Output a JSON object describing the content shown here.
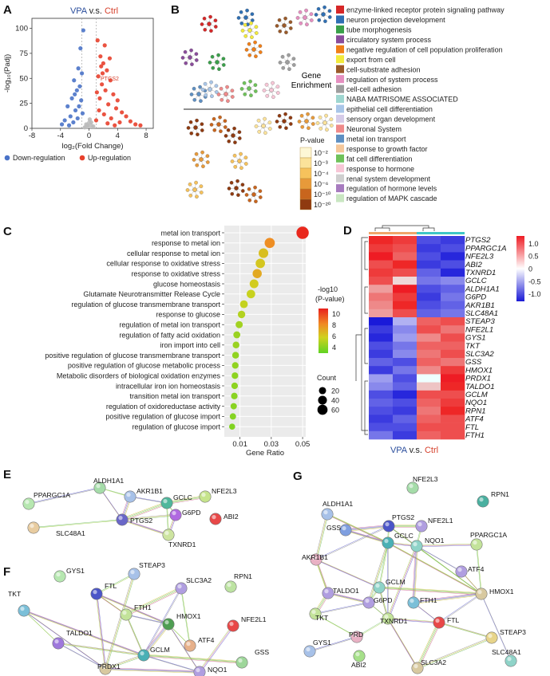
{
  "panels": [
    "A",
    "B",
    "C",
    "D",
    "E",
    "F",
    "G"
  ],
  "chart_data": [
    {
      "panel": "A",
      "type": "scatter",
      "title_parts": [
        "VPA",
        " v.s. ",
        "Ctrl"
      ],
      "xlabel": "log₂(Fold Change)",
      "ylabel": "-log₁₀(Padj)",
      "xlim": [
        -8,
        9
      ],
      "ylim": [
        0,
        110
      ],
      "xticks": [
        -8,
        -4,
        0,
        4,
        8
      ],
      "yticks": [
        0,
        25,
        50,
        75,
        100
      ],
      "annotations": [
        "PTGS2"
      ],
      "legend": [
        "Down-regulation",
        "Up-regulation"
      ],
      "colors": {
        "down": "#4a73c8",
        "up": "#e8402c",
        "ns": "#bbbbbb"
      },
      "points": [
        {
          "x": -0.8,
          "y": 98,
          "g": "down"
        },
        {
          "x": -1.2,
          "y": 80,
          "g": "down"
        },
        {
          "x": -1.5,
          "y": 60,
          "g": "down"
        },
        {
          "x": -2.1,
          "y": 48,
          "g": "down"
        },
        {
          "x": -1.0,
          "y": 55,
          "g": "down"
        },
        {
          "x": -1.7,
          "y": 38,
          "g": "down"
        },
        {
          "x": -2.4,
          "y": 30,
          "g": "down"
        },
        {
          "x": -3.0,
          "y": 22,
          "g": "down"
        },
        {
          "x": -1.3,
          "y": 42,
          "g": "down"
        },
        {
          "x": -1.9,
          "y": 18,
          "g": "down"
        },
        {
          "x": -2.6,
          "y": 12,
          "g": "down"
        },
        {
          "x": -3.4,
          "y": 8,
          "g": "down"
        },
        {
          "x": -1.1,
          "y": 28,
          "g": "down"
        },
        {
          "x": -1.6,
          "y": 10,
          "g": "down"
        },
        {
          "x": -2.2,
          "y": 6,
          "g": "down"
        },
        {
          "x": -0.9,
          "y": 15,
          "g": "down"
        },
        {
          "x": -3.8,
          "y": 4,
          "g": "down"
        },
        {
          "x": -2.8,
          "y": 3,
          "g": "down"
        },
        {
          "x": -1.4,
          "y": 22,
          "g": "down"
        },
        {
          "x": -2.0,
          "y": 34,
          "g": "down"
        },
        {
          "x": 1.2,
          "y": 88,
          "g": "up"
        },
        {
          "x": 1.6,
          "y": 72,
          "g": "up"
        },
        {
          "x": 2.0,
          "y": 65,
          "g": "up"
        },
        {
          "x": 2.5,
          "y": 58,
          "g": "up"
        },
        {
          "x": 3.0,
          "y": 48,
          "g": "up"
        },
        {
          "x": 1.3,
          "y": 52,
          "g": "up"
        },
        {
          "x": 1.8,
          "y": 44,
          "g": "up"
        },
        {
          "x": 2.3,
          "y": 38,
          "g": "up"
        },
        {
          "x": 3.4,
          "y": 34,
          "g": "up"
        },
        {
          "x": 4.0,
          "y": 28,
          "g": "up"
        },
        {
          "x": 1.1,
          "y": 36,
          "g": "up"
        },
        {
          "x": 1.5,
          "y": 30,
          "g": "up"
        },
        {
          "x": 2.7,
          "y": 24,
          "g": "up"
        },
        {
          "x": 3.8,
          "y": 20,
          "g": "up"
        },
        {
          "x": 4.6,
          "y": 16,
          "g": "up"
        },
        {
          "x": 5.2,
          "y": 12,
          "g": "up"
        },
        {
          "x": 1.4,
          "y": 18,
          "g": "up"
        },
        {
          "x": 2.1,
          "y": 14,
          "g": "up"
        },
        {
          "x": 3.1,
          "y": 10,
          "g": "up"
        },
        {
          "x": 5.8,
          "y": 7,
          "g": "up"
        },
        {
          "x": 6.5,
          "y": 4,
          "g": "up"
        },
        {
          "x": 7.2,
          "y": 3,
          "g": "up"
        },
        {
          "x": 4.3,
          "y": 6,
          "g": "up"
        },
        {
          "x": 1.0,
          "y": 8,
          "g": "up"
        },
        {
          "x": 2.6,
          "y": 5,
          "g": "up"
        },
        {
          "x": 3.6,
          "y": 3,
          "g": "up"
        },
        {
          "x": 1.7,
          "y": 62,
          "g": "up"
        },
        {
          "x": 2.9,
          "y": 70,
          "g": "up"
        },
        {
          "x": 2.2,
          "y": 83,
          "g": "up"
        },
        {
          "x": 1.9,
          "y": 55,
          "g": "up"
        },
        {
          "x": 0.3,
          "y": 6,
          "g": "ns"
        },
        {
          "x": -0.4,
          "y": 4,
          "g": "ns"
        },
        {
          "x": 0.6,
          "y": 2,
          "g": "ns"
        },
        {
          "x": -0.6,
          "y": 1,
          "g": "ns"
        },
        {
          "x": 0.1,
          "y": 9,
          "g": "ns"
        },
        {
          "x": -0.2,
          "y": 3,
          "g": "ns"
        }
      ]
    },
    {
      "panel": "B",
      "type": "network",
      "center_label": "Gene Enrichment",
      "legend_title": "P-value",
      "pvalue_levels": [
        "10⁻²",
        "10⁻³",
        "10⁻⁴",
        "10⁻⁶",
        "10⁻¹⁰",
        "10⁻²⁰"
      ],
      "pvalue_colors": [
        "#fdf7d6",
        "#fbe29a",
        "#f6c25c",
        "#e79a3a",
        "#c8651d",
        "#8f3a10"
      ],
      "terms": [
        {
          "label": "enzyme-linked receptor protein signaling pathway",
          "color": "#d62728"
        },
        {
          "label": "neuron projection development",
          "color": "#2f6fb3"
        },
        {
          "label": "tube morphogenesis",
          "color": "#3aa04a"
        },
        {
          "label": "circulatory system process",
          "color": "#8a4c9b"
        },
        {
          "label": "negative regulation of cell population proliferation",
          "color": "#f07f18"
        },
        {
          "label": "export from cell",
          "color": "#f2ea3c"
        },
        {
          "label": "cell-substrate adhesion",
          "color": "#9a5a2a"
        },
        {
          "label": "regulation of system process",
          "color": "#e58fc0"
        },
        {
          "label": "cell-cell adhesion",
          "color": "#9e9e9e"
        },
        {
          "label": "NABA MATRISOME ASSOCIATED",
          "color": "#9ed6d0"
        },
        {
          "label": "epithelial cell differentiation",
          "color": "#a9c6e8"
        },
        {
          "label": "sensory organ development",
          "color": "#d5cbe8"
        },
        {
          "label": "Neuronal System",
          "color": "#ef8a8a"
        },
        {
          "label": "metal ion transport",
          "color": "#5e8fc2"
        },
        {
          "label": "response to growth factor",
          "color": "#f5c79a"
        },
        {
          "label": "fat cell differentiation",
          "color": "#6fc25a"
        },
        {
          "label": "response to hormone",
          "color": "#f7c6d6"
        },
        {
          "label": "renal system development",
          "color": "#cfcfcf"
        },
        {
          "label": "regulation of hormone levels",
          "color": "#a77bbf"
        },
        {
          "label": "regulation of MAPK cascade",
          "color": "#c9e6c2"
        }
      ]
    },
    {
      "panel": "C",
      "type": "scatter",
      "xlabel": "Gene Ratio",
      "xlim": [
        0.0,
        0.052
      ],
      "xticks": [
        0.01,
        0.03,
        0.05
      ],
      "color_title": [
        "-log10",
        "(P-value)"
      ],
      "color_ticks": [
        10,
        8,
        6,
        4
      ],
      "color_range": [
        3,
        11
      ],
      "size_title": "Count",
      "size_ticks": [
        20,
        40,
        60
      ],
      "categories": [
        "metal ion transport",
        "response to metal ion",
        "cellular response to metal ion",
        "cellular response to oxidative stress",
        "response to oxidative stress",
        "glucose homeostasis",
        "Glutamate Neurotransmitter Release Cycle",
        "regulation of glucose transmembrane transport",
        "response to glucose",
        "regulation of metal ion transport",
        "regulation of fatty acid oxidation",
        "iron import into cell",
        "positive regulation of glucose transmembrane transport",
        "positive regulation of glucose metabolic process",
        "Metabolic disorders of biological oxidation enzymes",
        "intracellular iron ion homeostasis",
        "transition metal ion transport",
        "regulation of oxidoreductase activity",
        "positive regulation of glucose import",
        "regulation of glucose import"
      ],
      "gene_ratio": [
        0.05,
        0.029,
        0.025,
        0.023,
        0.021,
        0.019,
        0.017,
        0.0125,
        0.011,
        0.0095,
        0.008,
        0.0075,
        0.0072,
        0.007,
        0.0068,
        0.0066,
        0.0064,
        0.006,
        0.0055,
        0.005
      ],
      "neglog10p": [
        10.8,
        8.2,
        6.4,
        6.1,
        7.2,
        5.9,
        5.5,
        5.4,
        5.0,
        4.6,
        4.4,
        4.4,
        4.2,
        4.2,
        4.1,
        4.1,
        4.0,
        4.0,
        3.9,
        3.8
      ],
      "count": [
        58,
        34,
        29,
        27,
        25,
        22,
        20,
        15,
        13,
        11,
        10,
        9,
        9,
        8,
        8,
        8,
        8,
        7,
        7,
        6
      ]
    },
    {
      "panel": "D",
      "type": "heatmap",
      "title_parts": [
        "VPA",
        " v.s. ",
        "Ctrl"
      ],
      "rows": [
        "PTGS2",
        "PPARGC1A",
        "NFE2L3",
        "ABI2",
        "TXNRD1",
        "GCLC",
        "ALDH1A1",
        "G6PD",
        "AKR1B1",
        "SLC48A1",
        "STEAP3",
        "NFE2L1",
        "GYS1",
        "TKT",
        "SLC3A2",
        "GSS",
        "HMOX1",
        "PRDX1",
        "TALDO1",
        "GCLM",
        "NQO1",
        "RPN1",
        "ATF4",
        "FTL",
        "FTH1"
      ],
      "groups": [
        "VPA",
        "VPA",
        "Ctrl",
        "Ctrl"
      ],
      "group_colors": {
        "VPA": "#f0a56a",
        "Ctrl": "#3fc6c6"
      },
      "colorbar_ticks": [
        1.0,
        0.5,
        0,
        -0.5,
        -1.0
      ],
      "values": [
        [
          1.1,
          1.0,
          -0.9,
          -1.0
        ],
        [
          1.0,
          0.9,
          -1.0,
          -0.9
        ],
        [
          1.2,
          0.8,
          -0.9,
          -1.1
        ],
        [
          0.9,
          1.1,
          -1.0,
          -0.9
        ],
        [
          1.0,
          0.9,
          -0.8,
          -1.1
        ],
        [
          0.9,
          0.2,
          -0.7,
          -0.6
        ],
        [
          0.5,
          1.2,
          -0.9,
          -0.8
        ],
        [
          0.7,
          1.0,
          -1.0,
          -0.7
        ],
        [
          0.6,
          1.1,
          -0.9,
          -0.8
        ],
        [
          0.5,
          0.9,
          -0.8,
          -0.7
        ],
        [
          -1.2,
          -0.4,
          0.8,
          0.9
        ],
        [
          -1.0,
          -0.6,
          0.9,
          0.7
        ],
        [
          -1.1,
          -0.5,
          0.6,
          0.9
        ],
        [
          -0.9,
          -0.7,
          0.8,
          0.8
        ],
        [
          -1.0,
          -0.6,
          0.7,
          0.9
        ],
        [
          -0.8,
          -0.9,
          0.8,
          0.7
        ],
        [
          -1.0,
          -0.7,
          0.6,
          1.0
        ],
        [
          -0.5,
          -0.9,
          0.0,
          1.3
        ],
        [
          -0.6,
          -0.8,
          0.3,
          1.1
        ],
        [
          -0.9,
          -1.1,
          0.9,
          0.9
        ],
        [
          -0.8,
          -0.9,
          0.8,
          1.0
        ],
        [
          -0.9,
          -1.0,
          0.7,
          1.1
        ],
        [
          -1.0,
          -0.8,
          0.8,
          0.9
        ],
        [
          -0.9,
          -0.9,
          0.9,
          0.9
        ],
        [
          -0.7,
          -1.0,
          0.8,
          0.9
        ]
      ]
    }
  ],
  "networks": {
    "E": {
      "genes": [
        "PPARGC1A",
        "ALDH1A1",
        "AKR1B1",
        "GCLC",
        "NFE2L3",
        "G6PD",
        "ABI2",
        "SLC48A1",
        "PTGS2",
        "TXNRD1"
      ]
    },
    "F": {
      "genes": [
        "GYS1",
        "FTL",
        "STEAP3",
        "SLC3A2",
        "RPN1",
        "TKT",
        "FTH1",
        "HMOX1",
        "NFE2L1",
        "ATF4",
        "GSS",
        "TALDO1",
        "GCLM",
        "NQO1",
        "PRDX1"
      ]
    },
    "G": {
      "genes": [
        "NFE2L3",
        "RPN1",
        "ALDH1A1",
        "NFE2L1",
        "GSS",
        "PTGS2",
        "PPARGC1A",
        "GCLC",
        "NQO1",
        "AKR1B1",
        "ATF4",
        "GCLM",
        "HMOX1",
        "TALDO1",
        "G6PD",
        "FTH1",
        "TKT",
        "TXNRD1",
        "FTL",
        "STEAP3",
        "PRD",
        "SLC48A1",
        "GYS1",
        "ABI2",
        "SLC3A2"
      ]
    }
  }
}
